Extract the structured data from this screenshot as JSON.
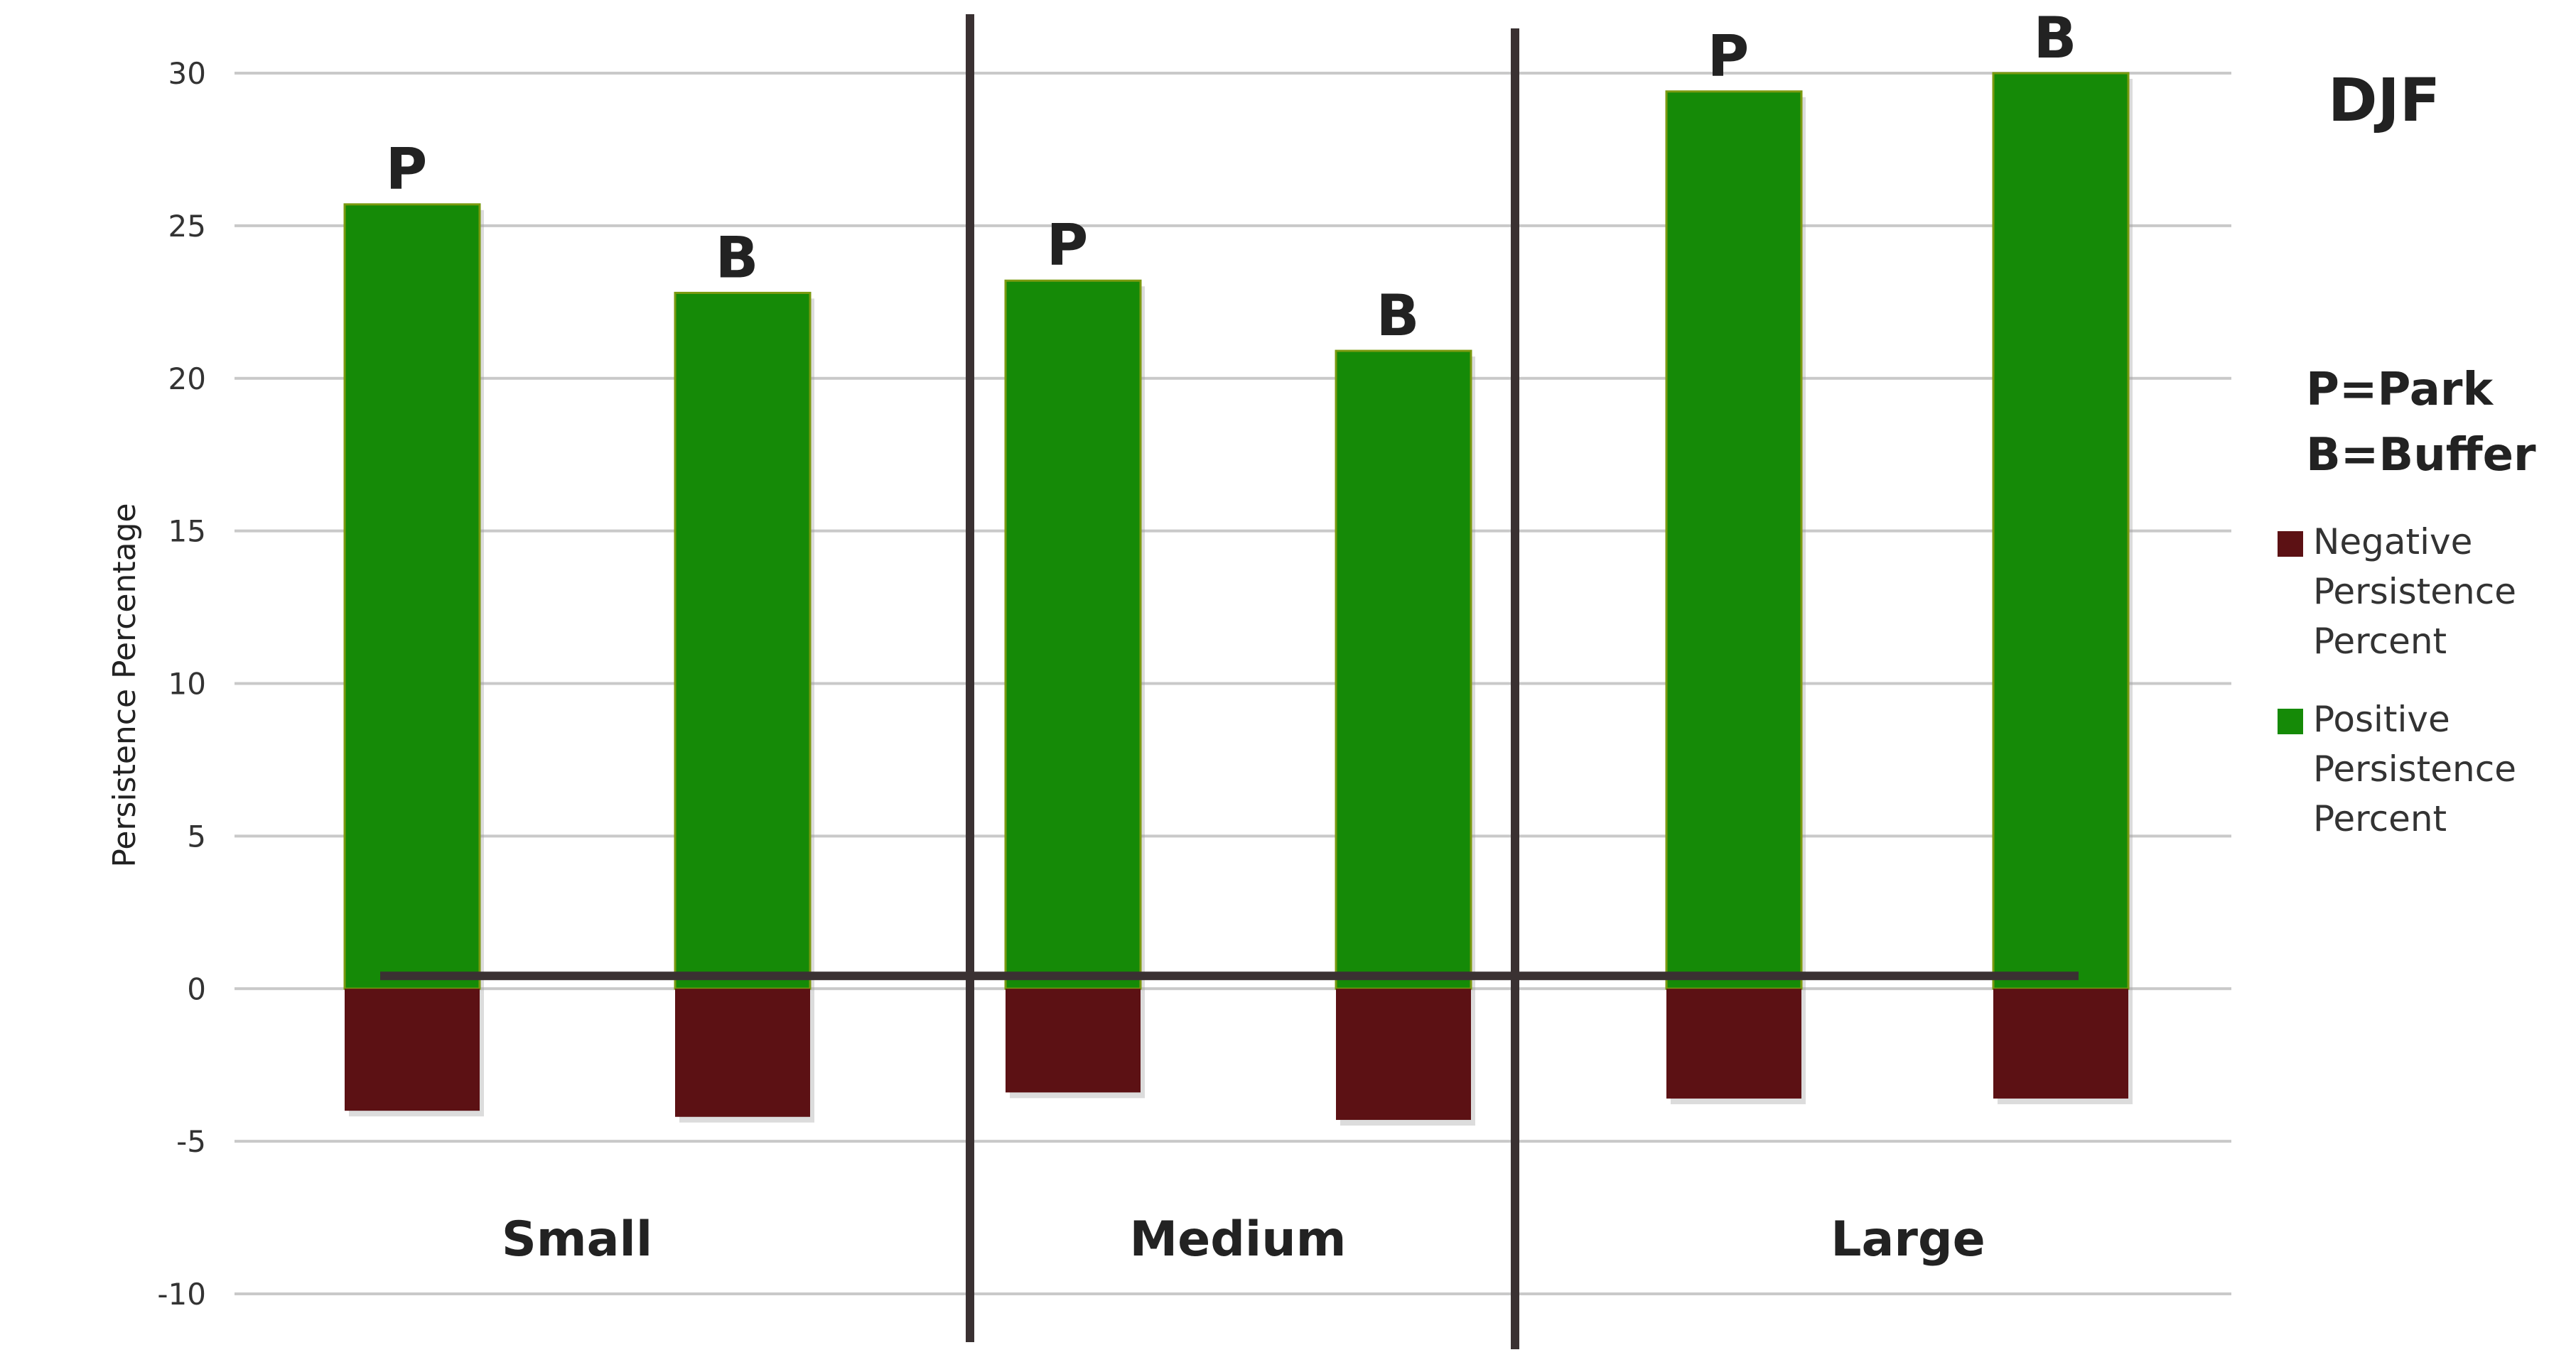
{
  "chart_data": {
    "type": "bar",
    "title": "DJF",
    "ylabel": "Persistence Percentage",
    "xlabel": "",
    "ylim": [
      -10,
      30
    ],
    "yticks": [
      30,
      25,
      20,
      15,
      10,
      5,
      0,
      -5,
      -10
    ],
    "grid": true,
    "legend_position": "right",
    "groups": [
      "Small",
      "Medium",
      "Large"
    ],
    "categories": [
      "P",
      "B",
      "P",
      "B",
      "P",
      "B"
    ],
    "series": [
      {
        "name": "Positive Persistence Percent",
        "color": "#158a07",
        "values": [
          25.7,
          22.8,
          23.2,
          20.9,
          29.4,
          30.0
        ]
      },
      {
        "name": "Negative Persistence Percent",
        "color": "#5c1114",
        "values": [
          -4.0,
          -4.2,
          -3.4,
          -4.3,
          -3.6,
          -3.6
        ]
      }
    ],
    "key_note": [
      "P=Park",
      "B=Buffer"
    ],
    "legend_entries": [
      {
        "color": "#5c1114",
        "lines": [
          "Negative",
          "Persistence",
          "Percent"
        ]
      },
      {
        "color": "#158a07",
        "lines": [
          "Positive",
          "Persistence",
          "Percent"
        ]
      }
    ]
  }
}
